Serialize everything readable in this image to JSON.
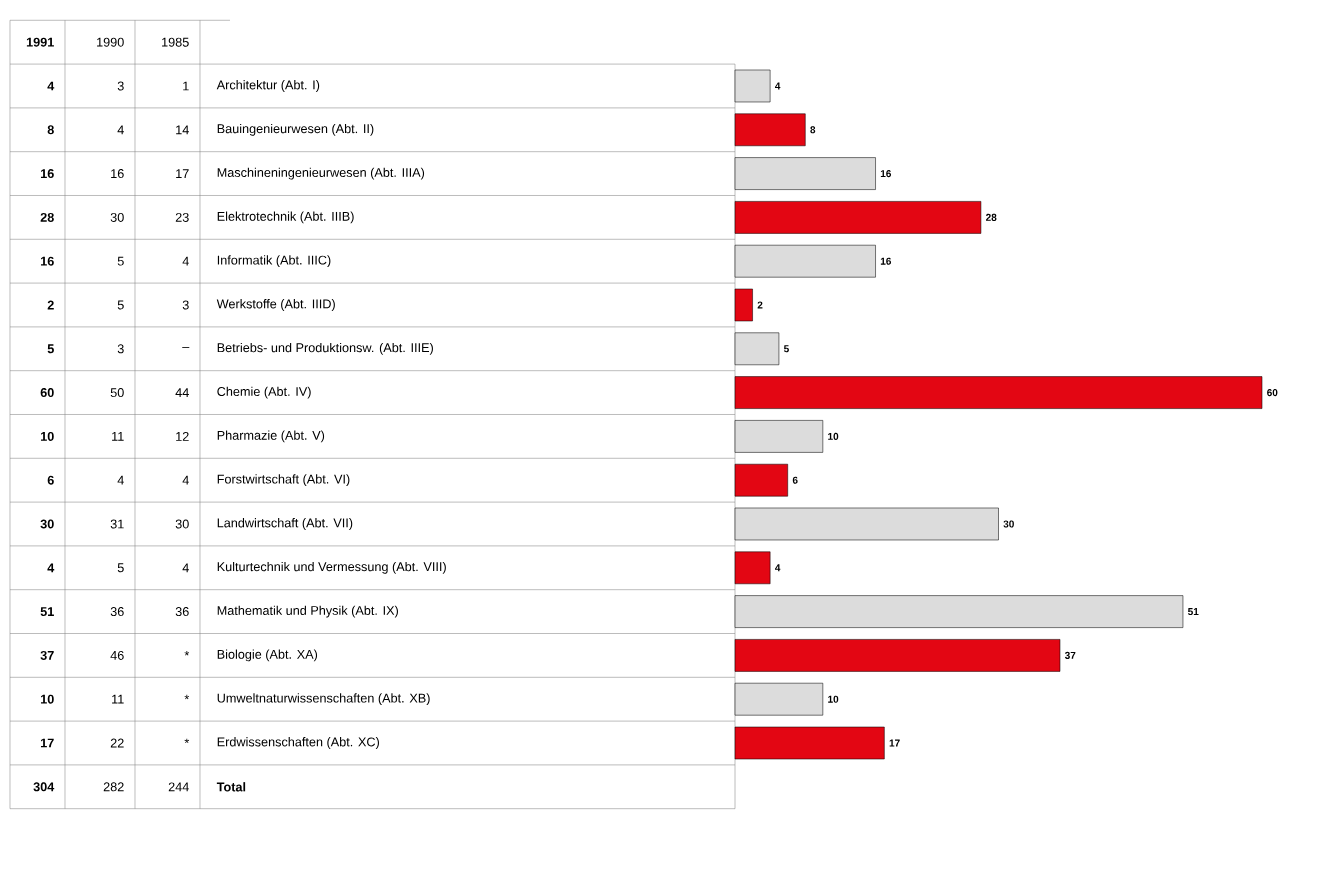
{
  "chart_data": {
    "type": "bar",
    "orientation": "horizontal",
    "data_labels": true,
    "categories": [
      "Architektur (Abt. I)",
      "Bauingenieurwesen (Abt. II)",
      "Maschineningenieurwesen (Abt. IIIA)",
      "Elektrotechnik (Abt. IIIB)",
      "Informatik (Abt. IIIC)",
      "Werkstoffe (Abt. IIID)",
      "Betriebs- und Produktionsw. (Abt. IIIE)",
      "Chemie (Abt. IV)",
      "Pharmazie (Abt. V)",
      "Forstwirtschaft (Abt. VI)",
      "Landwirtschaft (Abt. VII)",
      "Kulturtechnik und Vermessung (Abt. VIII)",
      "Mathematik und Physik (Abt. IX)",
      "Biologie (Abt. XA)",
      "Umweltnaturwissenschaften (Abt. XB)",
      "Erdwissenschaften (Abt. XC)"
    ],
    "series": [
      {
        "type": "bar",
        "values": [
          4,
          8,
          16,
          28,
          16,
          2,
          5,
          60,
          10,
          6,
          30,
          4,
          51,
          37,
          10,
          17
        ],
        "colors": [
          "#dcdcdc",
          "#e30613",
          "#dcdcdc",
          "#e30613",
          "#dcdcdc",
          "#e30613",
          "#dcdcdc",
          "#e30613",
          "#dcdcdc",
          "#e30613",
          "#dcdcdc",
          "#e30613",
          "#dcdcdc",
          "#e30613",
          "#dcdcdc",
          "#e30613"
        ]
      }
    ],
    "annotations": [
      "Total",
      "1991",
      "4",
      "8",
      "16",
      "28",
      "16",
      "2",
      "5",
      "60",
      "10",
      "6",
      "30",
      "4",
      "51",
      "37",
      "10",
      "17",
      "304",
      "1990",
      "3",
      "4",
      "16",
      "30",
      "5",
      "5",
      "3",
      "50",
      "11",
      "4",
      "31",
      "5",
      "36",
      "46",
      "11",
      "22",
      "282",
      "1985",
      "1",
      "14",
      "17",
      "23",
      "4",
      "3",
      "–",
      "44",
      "12",
      "4",
      "30",
      "4",
      "36",
      "*",
      "*",
      "*",
      "244"
    ]
  }
}
